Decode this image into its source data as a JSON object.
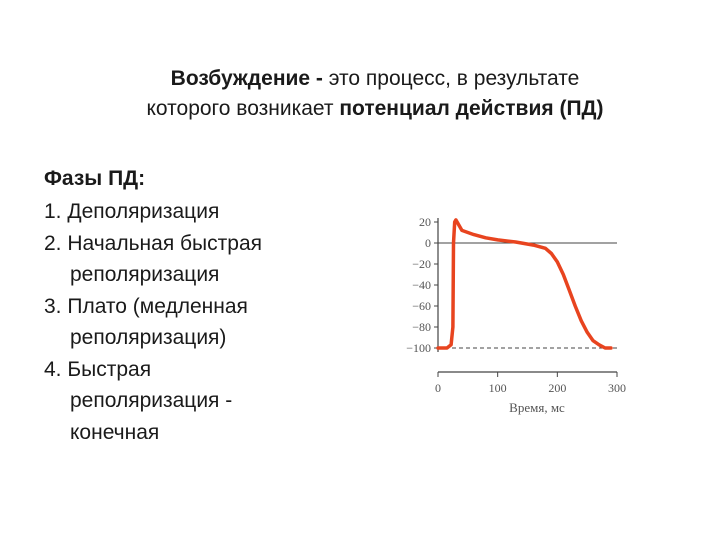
{
  "heading": {
    "line1_bold": "Возбуждение - ",
    "line1_rest": "это процесс, в результате",
    "line2_start": "которого возникает ",
    "line2_bold": "потенциал действия (ПД)"
  },
  "phases": {
    "title": "Фазы ПД:",
    "items": [
      {
        "line1": "1. Деполяризация",
        "line2": "",
        "line3": ""
      },
      {
        "line1": "2. Начальная быстрая",
        "line2": "реполяризация",
        "line3": ""
      },
      {
        "line1": "3. Плато (медленная",
        "line2": "реполяризация)",
        "line3": ""
      },
      {
        "line1": "4. Быстрая",
        "line2": "реполяризация -",
        "line3": "конечная"
      }
    ]
  },
  "colors": {
    "curve": "#e8441f",
    "axis": "#444444"
  },
  "chart_data": {
    "type": "line",
    "title": "",
    "xlabel": "Время, мс",
    "ylabel": "",
    "xlim": [
      0,
      300
    ],
    "ylim": [
      -100,
      20
    ],
    "x_ticks": [
      "0",
      "100",
      "200",
      "300"
    ],
    "y_ticks": [
      "20",
      "0",
      "−20",
      "−40",
      "−60",
      "−80",
      "−100"
    ],
    "y_tick_values": [
      20,
      0,
      -20,
      -40,
      -60,
      -80,
      -100
    ],
    "x_tick_values": [
      0,
      100,
      200,
      300
    ],
    "reference_lines": [
      0,
      -100
    ],
    "series": [
      {
        "x": [
          0,
          15,
          22,
          25,
          26,
          28,
          30,
          40,
          60,
          80,
          100,
          130,
          160,
          180,
          190,
          200,
          210,
          220,
          230,
          240,
          250,
          260,
          270,
          280,
          290
        ],
        "y": [
          -100,
          -100,
          -97,
          -80,
          0,
          20,
          22,
          12,
          8,
          5,
          3,
          1,
          -2,
          -5,
          -10,
          -18,
          -30,
          -45,
          -60,
          -74,
          -85,
          -93,
          -97,
          -100,
          -100
        ]
      }
    ]
  }
}
